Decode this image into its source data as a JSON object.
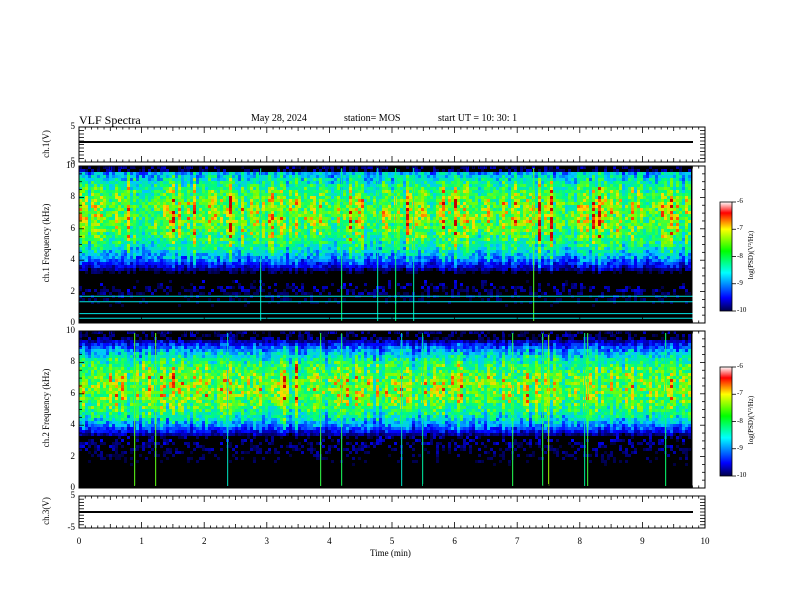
{
  "header": {
    "title": "VLF Spectra",
    "date": "May 28, 2024",
    "station": "station= MOS",
    "start": "start  UT  =   10: 30: 1"
  },
  "colors": {
    "spectrum_low": "#000000",
    "spectrum_blue": "#0000ff",
    "spectrum_cyan": "#00ffff",
    "spectrum_green": "#00ff00",
    "spectrum_yellow": "#ffff00",
    "spectrum_red": "#ff0000"
  },
  "chart_data": [
    {
      "type": "line",
      "panel": "ch1-voltage",
      "ylabel": "ch.1(V)",
      "ylim": [
        -5,
        5
      ],
      "y_ticks": [
        "5",
        "-5"
      ],
      "series": [
        {
          "x": [
            0,
            9.8
          ],
          "y": [
            0,
            0
          ]
        }
      ],
      "xlim": [
        0,
        10
      ]
    },
    {
      "type": "heatmap",
      "panel": "ch1-spectrogram",
      "ylabel": "ch.1 Frequency (kHz)",
      "ylim": [
        0,
        10
      ],
      "y_ticks": [
        "0",
        "2",
        "4",
        "6",
        "8",
        "10"
      ],
      "xlim": [
        0,
        10
      ],
      "data_end_min": 9.8,
      "band_khz": [
        2.8,
        9.8
      ],
      "peak_khz": 7.0,
      "narrowband_lines_khz": [
        0.3,
        0.6,
        1.35,
        1.7
      ],
      "colorbar": {
        "label": "log(PSD)(V²/Hz)",
        "range": [
          -10,
          -6
        ],
        "ticks": [
          "-6",
          "-7",
          "-8",
          "-9",
          "-10"
        ]
      }
    },
    {
      "type": "heatmap",
      "panel": "ch2-spectrogram",
      "ylabel": "ch.2 Frequency (kHz)",
      "ylim": [
        0,
        10
      ],
      "y_ticks": [
        "0",
        "2",
        "4",
        "6",
        "8",
        "10"
      ],
      "xlim": [
        0,
        10
      ],
      "data_end_min": 9.8,
      "band_khz": [
        3.5,
        9.5
      ],
      "peak_khz": 6.5,
      "narrowband_lines_khz": [],
      "colorbar": {
        "label": "log(PSD)(V²/Hz)",
        "range": [
          -10,
          -6
        ],
        "ticks": [
          "-6",
          "-7",
          "-8",
          "-9",
          "-10"
        ]
      }
    },
    {
      "type": "line",
      "panel": "ch3-voltage",
      "ylabel": "ch.3(V)",
      "ylim": [
        -5,
        5
      ],
      "y_ticks": [
        "5",
        "-5"
      ],
      "series": [
        {
          "x": [
            0,
            9.8
          ],
          "y": [
            0,
            0
          ]
        }
      ],
      "xlim": [
        0,
        10
      ],
      "xlabel": "Time (min)",
      "x_ticks": [
        "0",
        "1",
        "2",
        "3",
        "4",
        "5",
        "6",
        "7",
        "8",
        "9",
        "10"
      ]
    }
  ]
}
